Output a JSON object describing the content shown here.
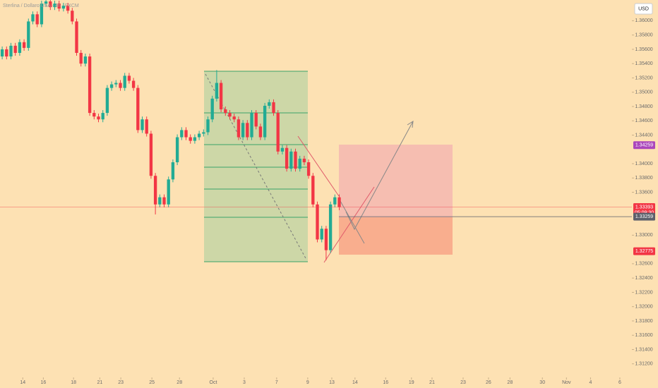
{
  "chart_data": {
    "type": "candlestick",
    "title": "Sterlina / Dollaro USA · 4h · FXCM",
    "currency": "USD",
    "up_color": "#22ab94",
    "down_color": "#f23645",
    "xlim": [
      -0.5,
      143.85
    ],
    "ylim": [
      1.3101,
      1.3629
    ],
    "open": [
      1.355,
      1.356,
      1.355,
      1.3565,
      1.3555,
      1.357,
      1.3562,
      1.3599,
      1.3609,
      1.3595,
      1.3624,
      1.3627,
      1.3619,
      1.3624,
      1.3617,
      1.3621,
      1.3614,
      1.3599,
      1.3555,
      1.354,
      1.355,
      1.3471,
      1.3466,
      1.3462,
      1.3471,
      1.3506,
      1.3511,
      1.3513,
      1.3506,
      1.3523,
      1.3516,
      1.3506,
      1.3447,
      1.3462,
      1.3442,
      1.3383,
      1.3343,
      1.3353,
      1.3343,
      1.3378,
      1.3402,
      1.3437,
      1.3447,
      1.3437,
      1.3432,
      1.3437,
      1.3442,
      1.3444,
      1.3462,
      1.3491,
      1.3513,
      1.3476,
      1.3471,
      1.3466,
      1.3462,
      1.3437,
      1.3457,
      1.3437,
      1.3471,
      1.3452,
      1.3437,
      1.3481,
      1.3486,
      1.3471,
      1.3417,
      1.3422,
      1.3393,
      1.3417,
      1.3393,
      1.3407,
      1.3402,
      1.3383,
      1.3343,
      1.3294,
      1.3309,
      1.3279,
      1.3343,
      1.3353
    ],
    "high": [
      1.3564,
      1.3564,
      1.3569,
      1.3569,
      1.3574,
      1.3574,
      1.3603,
      1.3613,
      1.3613,
      1.3628,
      1.3631,
      1.3631,
      1.3628,
      1.3628,
      1.3625,
      1.3625,
      1.3618,
      1.3603,
      1.3559,
      1.3554,
      1.3554,
      1.3475,
      1.347,
      1.3475,
      1.351,
      1.3515,
      1.3517,
      1.3517,
      1.3527,
      1.3527,
      1.352,
      1.351,
      1.3466,
      1.3466,
      1.3446,
      1.3387,
      1.3357,
      1.3357,
      1.3382,
      1.3406,
      1.3441,
      1.3451,
      1.3451,
      1.3441,
      1.3441,
      1.3446,
      1.3448,
      1.3466,
      1.3495,
      1.3531,
      1.3517,
      1.348,
      1.3475,
      1.347,
      1.3466,
      1.3461,
      1.3461,
      1.3475,
      1.3475,
      1.3456,
      1.3485,
      1.349,
      1.349,
      1.3475,
      1.3426,
      1.3426,
      1.3421,
      1.3421,
      1.3411,
      1.3411,
      1.3406,
      1.3387,
      1.3347,
      1.3313,
      1.3313,
      1.3347,
      1.3357,
      1.3357
    ],
    "low": [
      1.3546,
      1.3546,
      1.3546,
      1.3551,
      1.3551,
      1.3558,
      1.3558,
      1.3595,
      1.3591,
      1.3591,
      1.362,
      1.3615,
      1.3615,
      1.3613,
      1.3613,
      1.361,
      1.3595,
      1.3551,
      1.3536,
      1.3536,
      1.3467,
      1.3462,
      1.3458,
      1.3458,
      1.3467,
      1.3502,
      1.3507,
      1.3502,
      1.3502,
      1.3512,
      1.3502,
      1.3443,
      1.3443,
      1.3438,
      1.3379,
      1.3329,
      1.3339,
      1.3339,
      1.3339,
      1.3374,
      1.3398,
      1.3433,
      1.3433,
      1.3428,
      1.3428,
      1.3433,
      1.3438,
      1.344,
      1.3458,
      1.3487,
      1.3472,
      1.3467,
      1.3462,
      1.3458,
      1.3433,
      1.3433,
      1.3433,
      1.3433,
      1.3448,
      1.3433,
      1.3433,
      1.3477,
      1.3467,
      1.3413,
      1.3413,
      1.3389,
      1.3389,
      1.3389,
      1.3389,
      1.3398,
      1.3379,
      1.3339,
      1.329,
      1.329,
      1.3265,
      1.3275,
      1.3339,
      1.3335
    ],
    "close": [
      1.356,
      1.355,
      1.3565,
      1.3555,
      1.357,
      1.3562,
      1.3599,
      1.3609,
      1.3595,
      1.3624,
      1.3627,
      1.3619,
      1.3624,
      1.3617,
      1.3621,
      1.3614,
      1.3599,
      1.3555,
      1.354,
      1.355,
      1.3471,
      1.3466,
      1.3462,
      1.3471,
      1.3506,
      1.3511,
      1.3513,
      1.3506,
      1.3523,
      1.3516,
      1.3506,
      1.3447,
      1.3462,
      1.3442,
      1.3383,
      1.3343,
      1.3353,
      1.3343,
      1.3378,
      1.3402,
      1.3437,
      1.3447,
      1.3437,
      1.3432,
      1.3437,
      1.3442,
      1.3444,
      1.3462,
      1.3491,
      1.3513,
      1.3476,
      1.3471,
      1.3466,
      1.3462,
      1.3437,
      1.3457,
      1.3437,
      1.3471,
      1.3452,
      1.3437,
      1.3481,
      1.3486,
      1.3471,
      1.3417,
      1.3422,
      1.3393,
      1.3417,
      1.3393,
      1.3407,
      1.3402,
      1.3383,
      1.3343,
      1.3294,
      1.3309,
      1.3279,
      1.3343,
      1.3353,
      1.33393
    ],
    "yticks": [
      {
        "value": 1.36,
        "label": "1.36000"
      },
      {
        "value": 1.358,
        "label": "1.35800"
      },
      {
        "value": 1.356,
        "label": "1.35600"
      },
      {
        "value": 1.354,
        "label": "1.35400"
      },
      {
        "value": 1.352,
        "label": "1.35200"
      },
      {
        "value": 1.35,
        "label": "1.35000"
      },
      {
        "value": 1.348,
        "label": "1.34800"
      },
      {
        "value": 1.346,
        "label": "1.34600"
      },
      {
        "value": 1.344,
        "label": "1.34400"
      },
      {
        "value": 1.34,
        "label": "1.34000"
      },
      {
        "value": 1.338,
        "label": "1.33800"
      },
      {
        "value": 1.336,
        "label": "1.33600"
      },
      {
        "value": 1.33,
        "label": "1.33000"
      },
      {
        "value": 1.326,
        "label": "1.32600"
      },
      {
        "value": 1.324,
        "label": "1.32400"
      },
      {
        "value": 1.322,
        "label": "1.32200"
      },
      {
        "value": 1.32,
        "label": "1.32000"
      },
      {
        "value": 1.318,
        "label": "1.31800"
      },
      {
        "value": 1.316,
        "label": "1.31600"
      },
      {
        "value": 1.314,
        "label": "1.31400"
      },
      {
        "value": 1.312,
        "label": "1.31200"
      }
    ],
    "xticks": [
      {
        "value": 4.7,
        "label": "14"
      },
      {
        "value": 9.4,
        "label": "16"
      },
      {
        "value": 16.3,
        "label": "18"
      },
      {
        "value": 22.3,
        "label": "21"
      },
      {
        "value": 27.1,
        "label": "23"
      },
      {
        "value": 34.2,
        "label": "25"
      },
      {
        "value": 40.5,
        "label": "28"
      },
      {
        "value": 48.2,
        "label": "Oct"
      },
      {
        "value": 55.3,
        "label": "3"
      },
      {
        "value": 62.7,
        "label": "7"
      },
      {
        "value": 69.8,
        "label": "9"
      },
      {
        "value": 75.3,
        "label": "13"
      },
      {
        "value": 80.6,
        "label": "14"
      },
      {
        "value": 87.6,
        "label": "16"
      },
      {
        "value": 93.5,
        "label": "19"
      },
      {
        "value": 98.2,
        "label": "21"
      },
      {
        "value": 105.3,
        "label": "23"
      },
      {
        "value": 111.1,
        "label": "26"
      },
      {
        "value": 116,
        "label": "28"
      },
      {
        "value": 123.4,
        "label": "30"
      },
      {
        "value": 128.9,
        "label": "Nov"
      },
      {
        "value": 134.4,
        "label": "4"
      },
      {
        "value": 141.1,
        "label": "6"
      }
    ],
    "price_labels": [
      {
        "value": 1.34259,
        "color": "#ab47bc"
      },
      {
        "value": 1.33393,
        "color": "#f23645",
        "countdown": "05:09:30"
      },
      {
        "value": 1.33259,
        "color": "#5d606b"
      },
      {
        "value": 1.32775,
        "color": "#f23645"
      }
    ]
  }
}
